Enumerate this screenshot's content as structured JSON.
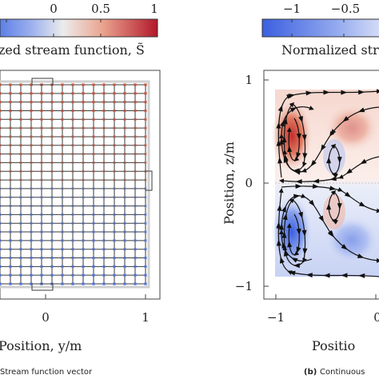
{
  "chart_data": [
    {
      "type": "heatmap",
      "caption": "Stream function vector",
      "colorbar": {
        "label": "zed stream function, S̃",
        "ticks": [
          "0",
          "0.5",
          "1"
        ],
        "low_color": "#3b5fe0",
        "mid_color": "#f5f5f5",
        "high_color": "#b2182b"
      },
      "xlabel": "Position, y/m",
      "x_ticks": [
        "0",
        "1"
      ],
      "grid_rows": 23,
      "grid_cols": 14
    },
    {
      "type": "heatmap",
      "caption_prefix": "(b)",
      "caption": "Continuous",
      "colorbar": {
        "label": "Normalized stre",
        "ticks": [
          "−1",
          "−0.5"
        ]
      },
      "ylabel": "Position, z/m",
      "xlabel": "Positio",
      "x_ticks": [
        "−1",
        "0"
      ],
      "y_ticks": [
        "1",
        "0",
        "−1"
      ],
      "ylim": [
        -1,
        1
      ],
      "xlim": [
        -1,
        0.1
      ]
    }
  ]
}
